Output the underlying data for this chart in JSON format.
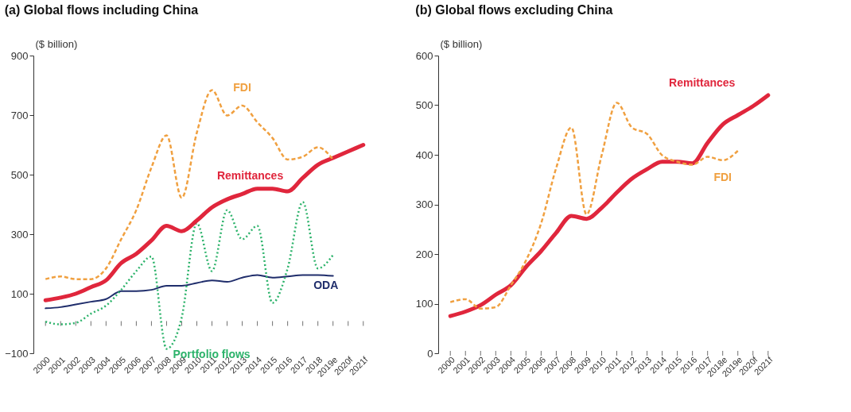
{
  "chart_data": [
    {
      "type": "line",
      "title": "(a)  Global flows including China",
      "ylabel": "($ billion)",
      "categories": [
        "2000",
        "2001",
        "2002",
        "2003",
        "2004",
        "2005",
        "2006",
        "2007",
        "2008",
        "2009",
        "2010",
        "2011",
        "2012",
        "2013",
        "2014",
        "2015",
        "2016",
        "2017",
        "2018",
        "2019e",
        "2020f",
        "2021f"
      ],
      "ylim": [
        -100,
        900
      ],
      "yticks": [
        -100,
        100,
        300,
        500,
        700,
        900
      ],
      "grid": false,
      "marker": "none",
      "series": [
        {
          "name": "FDI",
          "color": "#f0a040",
          "line_style": "dashed",
          "values": [
            149,
            158,
            149,
            149,
            185,
            283,
            381,
            524,
            632,
            422,
            641,
            784,
            699,
            732,
            676,
            623,
            551,
            560,
            592,
            551,
            null,
            null
          ]
        },
        {
          "name": "Remittances",
          "color": "#e0263c",
          "line_style": "solid",
          "values": [
            78,
            87,
            100,
            122,
            145,
            203,
            234,
            279,
            328,
            310,
            346,
            390,
            417,
            435,
            453,
            453,
            444,
            489,
            533,
            556,
            578,
            600
          ]
        },
        {
          "name": "Portfolio flows",
          "color": "#2db36b",
          "line_style": "dotted",
          "values": [
            6,
            -3,
            2,
            33,
            60,
            113,
            176,
            225,
            -85,
            20,
            337,
            176,
            381,
            283,
            328,
            69,
            185,
            408,
            185,
            230,
            null,
            null
          ]
        },
        {
          "name": "ODA",
          "color": "#1f2d6b",
          "line_style": "solid",
          "values": [
            51,
            55,
            64,
            73,
            82,
            109,
            109,
            113,
            127,
            127,
            136,
            145,
            140,
            154,
            163,
            154,
            158,
            163,
            163,
            160,
            null,
            null
          ]
        }
      ]
    },
    {
      "type": "line",
      "title": "(b) Global flows excluding China",
      "ylabel": "($ billion)",
      "categories": [
        "2000",
        "2001",
        "2002",
        "2003",
        "2004",
        "2005",
        "2006",
        "2007",
        "2008",
        "2009",
        "2010",
        "2011",
        "2012",
        "2013",
        "2014",
        "2015",
        "2016",
        "2017",
        "2018e",
        "2019e",
        "2020f",
        "2021f"
      ],
      "ylim": [
        0,
        600
      ],
      "yticks": [
        0,
        100,
        200,
        300,
        400,
        500,
        600
      ],
      "grid": false,
      "marker": "none",
      "series": [
        {
          "name": "FDI",
          "color": "#f0a040",
          "line_style": "dashed",
          "values": [
            103,
            109,
            90,
            93,
            137,
            187,
            262,
            374,
            455,
            280,
            399,
            505,
            455,
            442,
            399,
            386,
            380,
            396,
            389,
            408,
            null,
            null
          ]
        },
        {
          "name": "Remittances",
          "color": "#e0263c",
          "line_style": "solid",
          "values": [
            75,
            84,
            97,
            118,
            137,
            174,
            206,
            243,
            277,
            271,
            293,
            324,
            352,
            371,
            386,
            386,
            383,
            424,
            461,
            480,
            498,
            520
          ]
        }
      ]
    }
  ]
}
